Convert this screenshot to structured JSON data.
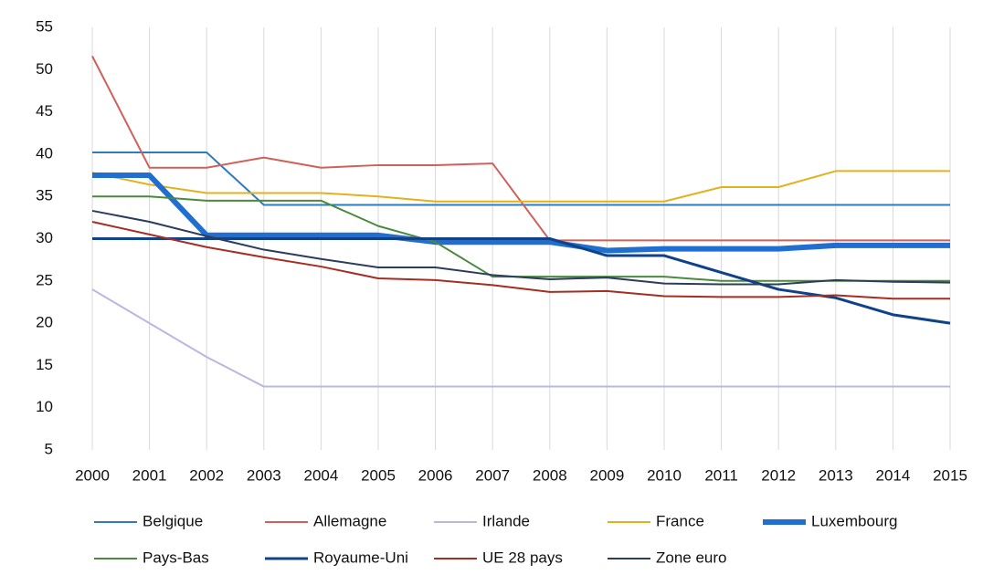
{
  "chart_data": {
    "type": "line",
    "categories": [
      "2000",
      "2001",
      "2002",
      "2003",
      "2004",
      "2005",
      "2006",
      "2007",
      "2008",
      "2009",
      "2010",
      "2011",
      "2012",
      "2013",
      "2014",
      "2015"
    ],
    "ylim": [
      5,
      55
    ],
    "yticks": [
      5,
      10,
      15,
      20,
      25,
      30,
      35,
      40,
      45,
      50,
      55
    ],
    "grid": "x",
    "series": [
      {
        "name": "Belgique",
        "color": "#2e7bbf",
        "width": 2,
        "values": [
          40.2,
          40.2,
          40.2,
          34,
          34,
          34,
          34,
          34,
          34,
          34,
          34,
          34,
          34,
          34,
          34,
          34
        ]
      },
      {
        "name": "Allemagne",
        "color": "#d0605a",
        "width": 2,
        "values": [
          51.6,
          38.4,
          38.4,
          39.6,
          38.4,
          38.7,
          38.7,
          38.9,
          29.8,
          29.8,
          29.8,
          29.8,
          29.8,
          29.8,
          29.8,
          29.8
        ]
      },
      {
        "name": "Irlande",
        "color": "#b8b8e0",
        "width": 2,
        "values": [
          24,
          20,
          16,
          12.5,
          12.5,
          12.5,
          12.5,
          12.5,
          12.5,
          12.5,
          12.5,
          12.5,
          12.5,
          12.5,
          12.5,
          12.5
        ]
      },
      {
        "name": "France",
        "color": "#e2b21c",
        "width": 2,
        "values": [
          37.8,
          36.4,
          35.4,
          35.4,
          35.4,
          35,
          34.4,
          34.4,
          34.4,
          34.4,
          34.4,
          36.1,
          36.1,
          38,
          38,
          38
        ]
      },
      {
        "name": "Luxembourg",
        "color": "#1f6ed0",
        "width": 6,
        "values": [
          37.5,
          37.5,
          30.4,
          30.4,
          30.4,
          30.4,
          29.6,
          29.6,
          29.6,
          28.6,
          28.8,
          28.8,
          28.8,
          29.2,
          29.2,
          29.2
        ]
      },
      {
        "name": "Pays-Bas",
        "color": "#4b8a3c",
        "width": 2,
        "values": [
          35,
          35,
          34.5,
          34.5,
          34.5,
          31.5,
          29.6,
          25.5,
          25.5,
          25.5,
          25.5,
          25,
          25,
          25,
          25,
          25
        ]
      },
      {
        "name": "Royaume-Uni",
        "color": "#10428a",
        "width": 3,
        "values": [
          30,
          30,
          30,
          30,
          30,
          30,
          30,
          30,
          30,
          28,
          28,
          26,
          24,
          23,
          21,
          20
        ]
      },
      {
        "name": "UE 28 pays",
        "color": "#a62d22",
        "width": 2,
        "values": [
          32,
          30.5,
          29,
          27.8,
          26.7,
          25.3,
          25.1,
          24.5,
          23.7,
          23.8,
          23.2,
          23.1,
          23.1,
          23.3,
          22.9,
          22.9
        ]
      },
      {
        "name": "Zone euro",
        "color": "#2c3d5c",
        "width": 2,
        "values": [
          33.3,
          32,
          30.3,
          28.7,
          27.6,
          26.6,
          26.6,
          25.7,
          25.2,
          25.4,
          24.7,
          24.6,
          24.6,
          25.1,
          24.9,
          24.8
        ]
      }
    ]
  }
}
